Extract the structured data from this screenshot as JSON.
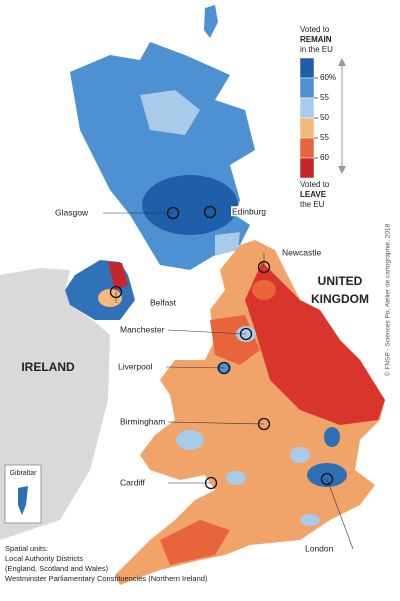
{
  "map": {
    "legend": {
      "remain_label": [
        "Voted to",
        "REMAIN",
        "in the EU"
      ],
      "leave_label": [
        "Voted to",
        "LEAVE",
        "the EU"
      ],
      "colors": [
        "#1f5ea8",
        "#4d91d2",
        "#a9cbea",
        "#f5b77a",
        "#e8643a",
        "#c4262b"
      ],
      "ticks": [
        {
          "value": 60,
          "label": "60%"
        },
        55,
        50,
        55,
        60
      ]
    },
    "cities": [
      "Glasgow",
      "Edinburg",
      "Newcastle",
      "Belfast",
      "Manchester",
      "Liverpool",
      "Birmingham",
      "Cardiff",
      "London"
    ],
    "countries": [
      "UNITED KINGDOM",
      "IRELAND"
    ],
    "inset": "Gibraltar",
    "credit": "© FNSP - Sciences Po, Atelier de cartographie, 2018",
    "notes": [
      "Spatial units:",
      "Local Authority Districts",
      "(England, Scotland and Wales)",
      "Westminster Parliamentary Constituencies (Northern Ireland)"
    ]
  }
}
